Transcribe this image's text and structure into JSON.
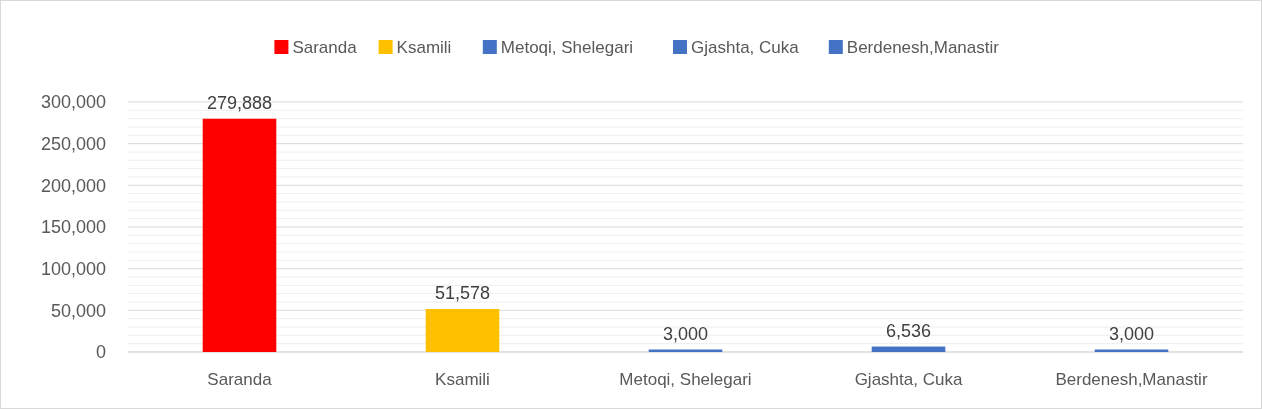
{
  "chart_data": {
    "type": "bar",
    "stacked": true,
    "categories": [
      "Saranda",
      "Ksamili",
      "Metoqi, Shelegari",
      "Gjashta, Cuka",
      "Berdenesh,Manastir"
    ],
    "series": [
      {
        "name": "Saranda",
        "color": "#ff0000",
        "values": [
          279888,
          null,
          null,
          null,
          null
        ],
        "value_labels": [
          "279,888",
          null,
          null,
          null,
          null
        ]
      },
      {
        "name": "Ksamili",
        "color": "#ffc000",
        "values": [
          null,
          51578,
          null,
          null,
          null
        ],
        "value_labels": [
          null,
          "51,578",
          null,
          null,
          null
        ]
      },
      {
        "name": "Metoqi, Shelegari",
        "color": "#4472c4",
        "values": [
          null,
          null,
          3000,
          null,
          null
        ],
        "value_labels": [
          null,
          null,
          "3,000",
          null,
          null
        ]
      },
      {
        "name": "Gjashta, Cuka",
        "color": "#4472c4",
        "values": [
          null,
          null,
          null,
          6536,
          null
        ],
        "value_labels": [
          null,
          null,
          null,
          "6,536",
          null
        ]
      },
      {
        "name": "Berdenesh,Manastir",
        "color": "#4472c4",
        "values": [
          null,
          null,
          null,
          null,
          3000
        ],
        "value_labels": [
          null,
          null,
          null,
          null,
          "3,000"
        ]
      }
    ],
    "ylim": [
      0,
      300000
    ],
    "yticks": [
      0,
      {
        "value": 10000,
        "label": null
      },
      {
        "value": 20000,
        "label": null
      },
      {
        "value": 30000,
        "label": null
      },
      {
        "value": 40000,
        "label": null
      },
      {
        "value": 50000,
        "label": "50,000"
      },
      {
        "value": 60000,
        "label": null
      },
      {
        "value": 70000,
        "label": null
      },
      {
        "value": 80000,
        "label": null
      },
      {
        "value": 90000,
        "label": null
      },
      {
        "value": 100000,
        "label": "100,000"
      },
      {
        "value": 110000,
        "label": null
      },
      {
        "value": 120000,
        "label": null
      },
      {
        "value": 130000,
        "label": null
      },
      {
        "value": 140000,
        "label": null
      },
      {
        "value": 150000,
        "label": "150,000"
      },
      {
        "value": 160000,
        "label": null
      },
      {
        "value": 170000,
        "label": null
      },
      {
        "value": 180000,
        "label": null
      },
      {
        "value": 190000,
        "label": null
      },
      {
        "value": 200000,
        "label": "200,000"
      },
      {
        "value": 210000,
        "label": null
      },
      {
        "value": 220000,
        "label": null
      },
      {
        "value": 230000,
        "label": null
      },
      {
        "value": 240000,
        "label": null
      },
      {
        "value": 250000,
        "label": "250,000"
      },
      {
        "value": 260000,
        "label": null
      },
      {
        "value": 270000,
        "label": null
      },
      {
        "value": 280000,
        "label": null
      },
      {
        "value": 290000,
        "label": null
      },
      {
        "value": 300000,
        "label": "300,000"
      }
    ],
    "grid": "y",
    "legend": "top"
  }
}
